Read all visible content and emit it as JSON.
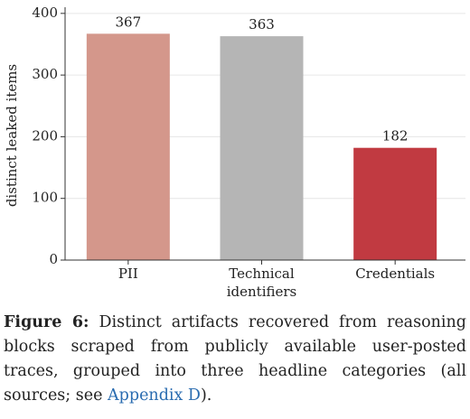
{
  "chart_data": {
    "type": "bar",
    "ylabel": "distinct leaked items",
    "categories": [
      "PII",
      "Technical identifiers",
      "Credentials"
    ],
    "values": [
      367,
      363,
      182
    ],
    "colors": [
      "#d4978b",
      "#b5b5b5",
      "#c13a41"
    ],
    "ylim": [
      0,
      410
    ],
    "yticks": [
      0,
      100,
      200,
      300,
      400
    ],
    "grid": true
  },
  "caption": {
    "label": "Figure 6:",
    "text": "Distinct artifacts recovered from reasoning blocks scraped from publicly available user-posted traces, grouped into three headline categories (all sources; see",
    "link": "Appendix D",
    "end": ")."
  }
}
